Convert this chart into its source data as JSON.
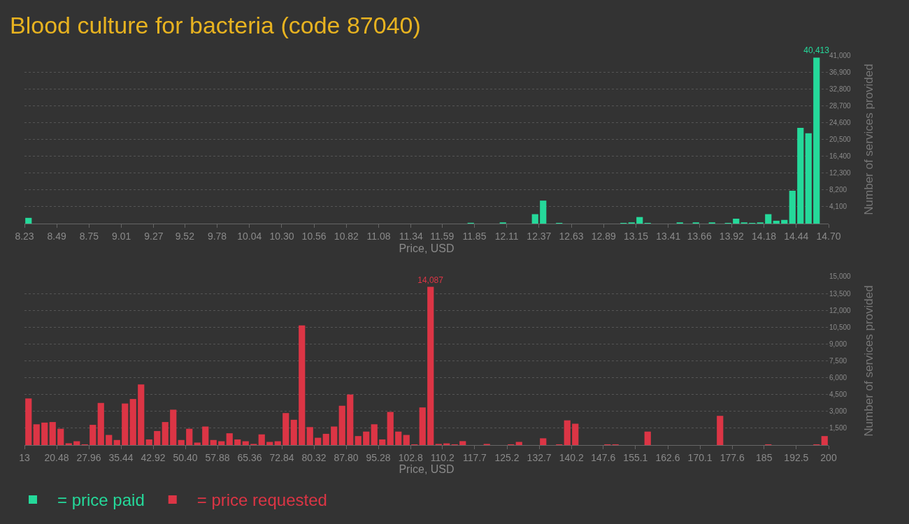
{
  "chart_data": [
    {
      "type": "histogram",
      "title": "Blood culture for bacteria (code 87040)",
      "xlabel": "Price, USD",
      "ylabel": "Number of services provided",
      "bins": [
        8.23,
        8.2947,
        8.3594,
        8.4241,
        8.4888,
        8.5535,
        8.6182,
        8.6829,
        8.7476,
        8.8123,
        8.877,
        8.9417,
        9.0064,
        9.0711,
        9.1358,
        9.2005,
        9.2652,
        9.3299,
        9.3946,
        9.4593,
        9.524,
        9.5887,
        9.6534,
        9.7181,
        9.7828,
        9.8475,
        9.9122,
        9.9769,
        10.0416,
        10.1063,
        10.171,
        10.2357,
        10.3004,
        10.3651,
        10.4298,
        10.4945,
        10.5592,
        10.6239,
        10.6886,
        10.7533,
        10.818,
        10.8827,
        10.9474,
        11.0121,
        11.0768,
        11.1415,
        11.2062,
        11.2709,
        11.3356,
        11.4003,
        11.465,
        11.5297,
        11.5944,
        11.6591,
        11.7238,
        11.7885,
        11.8532,
        11.9179,
        11.9826,
        12.0473,
        12.112,
        12.1767,
        12.2414,
        12.3061,
        12.3708,
        12.4355,
        12.5002,
        12.5649,
        12.6296,
        12.6943,
        12.759,
        12.8237,
        12.8884,
        12.9531,
        13.0178,
        13.0825,
        13.1472,
        13.2119,
        13.2766,
        13.3413,
        13.406,
        13.4707,
        13.5354,
        13.6001,
        13.6648,
        13.7295,
        13.7942,
        13.8589,
        13.9236,
        13.9883,
        14.053,
        14.1177,
        14.1824,
        14.2471,
        14.3118,
        14.3765,
        14.4412,
        14.5059,
        14.5706,
        14.6353,
        14.7
      ],
      "series": [
        {
          "name": "= price paid",
          "color": "#25d99a",
          "values": [
            1400,
            0,
            0,
            0,
            0,
            0,
            0,
            0,
            0,
            0,
            0,
            0,
            0,
            0,
            0,
            0,
            0,
            0,
            0,
            0,
            0,
            0,
            0,
            0,
            0,
            0,
            0,
            0,
            0,
            0,
            0,
            0,
            0,
            0,
            0,
            0,
            0,
            0,
            0,
            0,
            0,
            0,
            0,
            0,
            0,
            0,
            0,
            0,
            0,
            0,
            0,
            0,
            0,
            0,
            0,
            200,
            0,
            0,
            0,
            300,
            0,
            0,
            0,
            2300,
            5600,
            0,
            100,
            0,
            0,
            0,
            0,
            0,
            0,
            0,
            100,
            300,
            1600,
            100,
            0,
            0,
            0,
            300,
            0,
            300,
            0,
            300,
            0,
            100,
            1200,
            300,
            100,
            300,
            2300,
            700,
            900,
            8000,
            23300,
            22000,
            40413,
            0
          ],
          "value_labels": [
            null,
            null,
            null,
            null,
            null,
            null,
            null,
            null,
            null,
            null,
            null,
            null,
            null,
            null,
            null,
            null,
            null,
            null,
            null,
            null,
            null,
            null,
            null,
            null,
            null,
            null,
            null,
            null,
            null,
            null,
            null,
            null,
            null,
            null,
            null,
            null,
            null,
            null,
            null,
            null,
            null,
            null,
            null,
            null,
            null,
            null,
            null,
            null,
            null,
            null,
            null,
            null,
            null,
            null,
            null,
            null,
            null,
            null,
            null,
            null,
            null,
            null,
            null,
            null,
            null,
            null,
            null,
            null,
            null,
            null,
            null,
            null,
            null,
            null,
            null,
            null,
            null,
            null,
            null,
            null,
            null,
            null,
            null,
            null,
            null,
            null,
            null,
            null,
            null,
            null,
            null,
            null,
            null,
            null,
            null,
            null,
            null,
            null,
            "40,413",
            null
          ]
        }
      ],
      "xlim": [
        8.23,
        14.7
      ],
      "xticks": [
        {
          "value": 8.23,
          "label": "8.23"
        },
        {
          "value": 8.49,
          "label": "8.49"
        },
        {
          "value": 8.75,
          "label": "8.75"
        },
        {
          "value": 9.01,
          "label": "9.01"
        },
        {
          "value": 9.27,
          "label": "9.27"
        },
        {
          "value": 9.52,
          "label": "9.52"
        },
        {
          "value": 9.78,
          "label": "9.78"
        },
        {
          "value": 10.04,
          "label": "10.04"
        },
        {
          "value": 10.3,
          "label": "10.30"
        },
        {
          "value": 10.56,
          "label": "10.56"
        },
        {
          "value": 10.82,
          "label": "10.82"
        },
        {
          "value": 11.08,
          "label": "11.08"
        },
        {
          "value": 11.34,
          "label": "11.34"
        },
        {
          "value": 11.59,
          "label": "11.59"
        },
        {
          "value": 11.85,
          "label": "11.85"
        },
        {
          "value": 12.11,
          "label": "12.11"
        },
        {
          "value": 12.37,
          "label": "12.37"
        },
        {
          "value": 12.63,
          "label": "12.63"
        },
        {
          "value": 12.89,
          "label": "12.89"
        },
        {
          "value": 13.15,
          "label": "13.15"
        },
        {
          "value": 13.41,
          "label": "13.41"
        },
        {
          "value": 13.66,
          "label": "13.66"
        },
        {
          "value": 13.92,
          "label": "13.92"
        },
        {
          "value": 14.18,
          "label": "14.18"
        },
        {
          "value": 14.44,
          "label": "14.44"
        },
        {
          "value": 14.7,
          "label": "14.70"
        }
      ],
      "ylim": [
        0,
        41000
      ],
      "yticks": [
        {
          "value": 4100,
          "label": "4,100"
        },
        {
          "value": 8200,
          "label": "8,200"
        },
        {
          "value": 12300,
          "label": "12,300"
        },
        {
          "value": 16400,
          "label": "16,400"
        },
        {
          "value": 20500,
          "label": "20,500"
        },
        {
          "value": 24600,
          "label": "24,600"
        },
        {
          "value": 28700,
          "label": "28,700"
        },
        {
          "value": 32800,
          "label": "32,800"
        },
        {
          "value": 36900,
          "label": "36,900"
        },
        {
          "value": 41000,
          "label": "41,000"
        }
      ],
      "grid": "y",
      "legend": "bottom left"
    },
    {
      "type": "histogram",
      "xlabel": "Price, USD",
      "ylabel": "Number of services provided",
      "bins": [
        13,
        14.87,
        16.74,
        18.61,
        20.48,
        22.35,
        24.22,
        26.09,
        27.96,
        29.83,
        31.7,
        33.57,
        35.44,
        37.31,
        39.18,
        41.05,
        42.92,
        44.79,
        46.66,
        48.53,
        50.4,
        52.27,
        54.14,
        56.01,
        57.88,
        59.75,
        61.62,
        63.49,
        65.36,
        67.23,
        69.1,
        70.97,
        72.84,
        74.71,
        76.58,
        78.45,
        80.32,
        82.19,
        84.06,
        85.93,
        87.8,
        89.67,
        91.54,
        93.41,
        95.28,
        97.15,
        99.02,
        100.89,
        102.76,
        104.63,
        106.5,
        108.37,
        110.24,
        112.11,
        113.98,
        115.85,
        117.72,
        119.59,
        121.46,
        123.33,
        125.2,
        127.07,
        128.94,
        130.81,
        132.68,
        134.55,
        136.42,
        138.29,
        140.16,
        142.03,
        143.9,
        145.77,
        147.64,
        149.51,
        151.38,
        153.25,
        155.12,
        156.99,
        158.86,
        160.73,
        162.6,
        164.47,
        166.34,
        168.21,
        170.08,
        171.95,
        173.82,
        175.69,
        177.56,
        179.43,
        181.3,
        183.17,
        185.04,
        186.91,
        188.78,
        190.65,
        192.52,
        194.39,
        196.26,
        198.13,
        200
      ],
      "series": [
        {
          "name": "= price requested",
          "color": "#dc3545",
          "values": [
            4150,
            1850,
            2000,
            2050,
            1450,
            160,
            340,
            50,
            1800,
            3750,
            900,
            450,
            3700,
            4100,
            5400,
            500,
            1250,
            2050,
            3150,
            450,
            1450,
            220,
            1650,
            450,
            340,
            1050,
            500,
            340,
            100,
            950,
            280,
            340,
            2850,
            2250,
            10650,
            1600,
            650,
            1000,
            1650,
            3500,
            4500,
            800,
            1200,
            1850,
            500,
            2950,
            1200,
            900,
            50,
            3350,
            14087,
            100,
            150,
            50,
            350,
            0,
            0,
            100,
            0,
            0,
            50,
            280,
            0,
            0,
            600,
            0,
            50,
            2200,
            1900,
            0,
            0,
            0,
            50,
            50,
            0,
            0,
            0,
            1200,
            0,
            0,
            0,
            0,
            0,
            0,
            0,
            0,
            2600,
            0,
            0,
            0,
            0,
            0,
            50,
            0,
            0,
            0,
            0,
            0,
            50,
            800
          ],
          "value_labels": [
            null,
            null,
            null,
            null,
            null,
            null,
            null,
            null,
            null,
            null,
            null,
            null,
            null,
            null,
            null,
            null,
            null,
            null,
            null,
            null,
            null,
            null,
            null,
            null,
            null,
            null,
            null,
            null,
            null,
            null,
            null,
            null,
            null,
            null,
            null,
            null,
            null,
            null,
            null,
            null,
            null,
            null,
            null,
            null,
            null,
            null,
            null,
            null,
            null,
            null,
            "14,087",
            null,
            null,
            null,
            null,
            null,
            null,
            null,
            null,
            null,
            null,
            null,
            null,
            null,
            null,
            null,
            null,
            null,
            null,
            null,
            null,
            null,
            null,
            null,
            null,
            null,
            null,
            null,
            null,
            null,
            null,
            null,
            null,
            null,
            null,
            null,
            null,
            null,
            null,
            null,
            null,
            null,
            null,
            null,
            null,
            null,
            null,
            null,
            null,
            null
          ]
        }
      ],
      "xlim": [
        13,
        200
      ],
      "xticks": [
        {
          "value": 13,
          "label": "13"
        },
        {
          "value": 20.48,
          "label": "20.48"
        },
        {
          "value": 27.96,
          "label": "27.96"
        },
        {
          "value": 35.44,
          "label": "35.44"
        },
        {
          "value": 42.92,
          "label": "42.92"
        },
        {
          "value": 50.4,
          "label": "50.40"
        },
        {
          "value": 57.88,
          "label": "57.88"
        },
        {
          "value": 65.36,
          "label": "65.36"
        },
        {
          "value": 72.84,
          "label": "72.84"
        },
        {
          "value": 80.32,
          "label": "80.32"
        },
        {
          "value": 87.8,
          "label": "87.80"
        },
        {
          "value": 95.28,
          "label": "95.28"
        },
        {
          "value": 102.8,
          "label": "102.8"
        },
        {
          "value": 110.2,
          "label": "110.2"
        },
        {
          "value": 117.7,
          "label": "117.7"
        },
        {
          "value": 125.2,
          "label": "125.2"
        },
        {
          "value": 132.7,
          "label": "132.7"
        },
        {
          "value": 140.2,
          "label": "140.2"
        },
        {
          "value": 147.6,
          "label": "147.6"
        },
        {
          "value": 155.1,
          "label": "155.1"
        },
        {
          "value": 162.6,
          "label": "162.6"
        },
        {
          "value": 170.1,
          "label": "170.1"
        },
        {
          "value": 177.6,
          "label": "177.6"
        },
        {
          "value": 185,
          "label": "185"
        },
        {
          "value": 192.5,
          "label": "192.5"
        },
        {
          "value": 200,
          "label": "200"
        }
      ],
      "ylim": [
        0,
        15000
      ],
      "yticks": [
        {
          "value": 1500,
          "label": "1,500"
        },
        {
          "value": 3000,
          "label": "3,000"
        },
        {
          "value": 4500,
          "label": "4,500"
        },
        {
          "value": 6000,
          "label": "6,000"
        },
        {
          "value": 7500,
          "label": "7,500"
        },
        {
          "value": 9000,
          "label": "9,000"
        },
        {
          "value": 10500,
          "label": "10,500"
        },
        {
          "value": 12000,
          "label": "12,000"
        },
        {
          "value": 13500,
          "label": "13,500"
        },
        {
          "value": 15000,
          "label": "15,000"
        }
      ],
      "grid": "y",
      "legend": "bottom left"
    }
  ]
}
